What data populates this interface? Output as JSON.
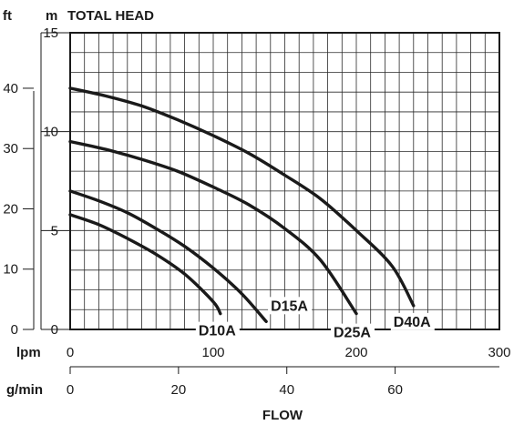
{
  "chart_data": {
    "type": "line",
    "title": "TOTAL HEAD",
    "xlabel": "FLOW",
    "axes": {
      "head_m": {
        "unit": "m",
        "range": [
          0,
          15
        ],
        "ticks": [
          "0",
          "5",
          "10",
          "15"
        ]
      },
      "head_ft": {
        "unit": "ft",
        "range": [
          0,
          49.2
        ],
        "ticks": [
          "0",
          "10",
          "20",
          "30",
          "40"
        ]
      },
      "flow_lpm": {
        "unit": "lpm",
        "range": [
          0,
          300
        ],
        "ticks": [
          "0",
          "100",
          "200",
          "300"
        ]
      },
      "flow_gpm": {
        "unit": "g/min",
        "range": [
          0,
          79.25
        ],
        "ticks": [
          "0",
          "20",
          "40",
          "60"
        ]
      }
    },
    "grid": true,
    "series": [
      {
        "name": "D10A",
        "label": "D10A",
        "x": [
          0,
          20,
          40,
          60,
          80,
          100,
          105
        ],
        "y": [
          5.8,
          5.3,
          4.6,
          3.8,
          2.8,
          1.4,
          0.8
        ]
      },
      {
        "name": "D15A",
        "label": "D15A",
        "x": [
          0,
          20,
          40,
          60,
          80,
          100,
          120,
          137
        ],
        "y": [
          7.0,
          6.5,
          5.9,
          5.1,
          4.2,
          3.1,
          1.8,
          0.4
        ]
      },
      {
        "name": "D25A",
        "label": "D25A",
        "x": [
          0,
          25,
          50,
          75,
          100,
          125,
          150,
          175,
          200
        ],
        "y": [
          9.5,
          9.1,
          8.6,
          8.0,
          7.2,
          6.3,
          5.1,
          3.5,
          0.8
        ]
      },
      {
        "name": "D40A",
        "label": "D40A",
        "x": [
          0,
          25,
          50,
          75,
          100,
          125,
          150,
          175,
          200,
          225,
          240
        ],
        "y": [
          12.2,
          11.8,
          11.3,
          10.6,
          9.8,
          8.9,
          7.8,
          6.6,
          5.0,
          3.2,
          1.2
        ]
      }
    ]
  }
}
